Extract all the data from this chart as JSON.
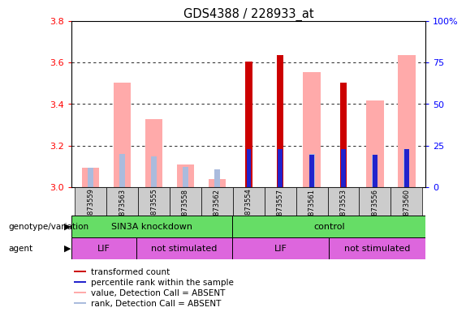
{
  "title": "GDS4388 / 228933_at",
  "samples": [
    "GSM873559",
    "GSM873563",
    "GSM873555",
    "GSM873558",
    "GSM873562",
    "GSM873554",
    "GSM873557",
    "GSM873561",
    "GSM873553",
    "GSM873556",
    "GSM873560"
  ],
  "ylim_left": [
    3.0,
    3.8
  ],
  "ylim_right": [
    0,
    100
  ],
  "yticks_left": [
    3.0,
    3.2,
    3.4,
    3.6,
    3.8
  ],
  "yticks_right": [
    0,
    25,
    50,
    75,
    100
  ],
  "ytick_labels_right": [
    "0",
    "25",
    "50",
    "75",
    "100%"
  ],
  "red_bars": [
    null,
    null,
    null,
    null,
    null,
    3.603,
    3.636,
    null,
    3.503,
    null,
    null
  ],
  "blue_bars": [
    null,
    null,
    null,
    null,
    null,
    3.183,
    3.185,
    3.155,
    3.183,
    3.155,
    3.185
  ],
  "pink_bars": [
    3.095,
    3.503,
    3.328,
    3.108,
    3.038,
    null,
    null,
    3.553,
    null,
    3.418,
    3.638
  ],
  "lightblue_bars": [
    3.095,
    3.16,
    3.148,
    3.098,
    3.085,
    null,
    null,
    3.158,
    null,
    3.155,
    3.183
  ],
  "groups": [
    {
      "label": "SIN3A knockdown",
      "start": 0,
      "end": 5
    },
    {
      "label": "control",
      "start": 5,
      "end": 11
    }
  ],
  "agent_data": [
    {
      "label": "LIF",
      "start": 0,
      "end": 2
    },
    {
      "label": "not stimulated",
      "start": 2,
      "end": 5
    },
    {
      "label": "LIF",
      "start": 5,
      "end": 8
    },
    {
      "label": "not stimulated",
      "start": 8,
      "end": 11
    }
  ],
  "red_color": "#cc0000",
  "blue_color": "#2222cc",
  "pink_color": "#ffaaaa",
  "lightblue_color": "#aabbdd",
  "green_color": "#66dd66",
  "magenta_color": "#dd66dd",
  "gray_color": "#cccccc",
  "legend_labels": [
    "transformed count",
    "percentile rank within the sample",
    "value, Detection Call = ABSENT",
    "rank, Detection Call = ABSENT"
  ]
}
